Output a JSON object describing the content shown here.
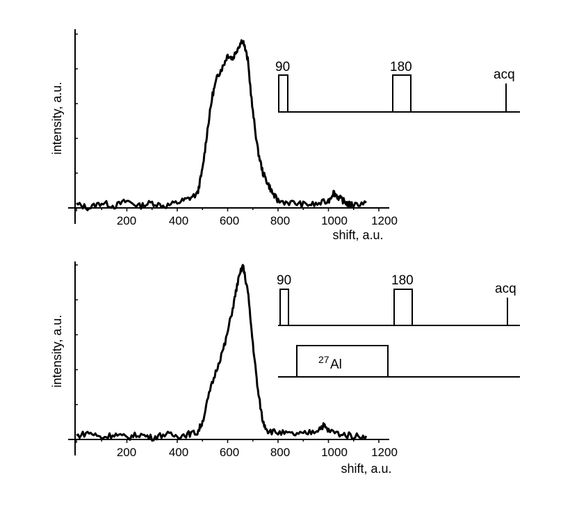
{
  "chart_data": [
    {
      "type": "line",
      "panel": "top",
      "xlabel": "shift, a.u.",
      "ylabel": "intensity, a.u.",
      "x_ticks": [
        "200",
        "400",
        "600",
        "800",
        "1000",
        "1200"
      ],
      "xlim": [
        0,
        1300
      ],
      "ylim": [
        0,
        1
      ],
      "grid": false,
      "series": [
        {
          "x": [
            0,
            50,
            100,
            150,
            200,
            250,
            300,
            350,
            400,
            440,
            480,
            500,
            520,
            540,
            560,
            580,
            600,
            620,
            640,
            660,
            680,
            700,
            720,
            740,
            760,
            780,
            800,
            850,
            900,
            950,
            1000,
            1020,
            1040,
            1060,
            1080,
            1100,
            1150
          ],
          "y": [
            0.02,
            0.0,
            0.03,
            0.01,
            0.04,
            0.01,
            0.03,
            0.01,
            0.03,
            0.05,
            0.08,
            0.22,
            0.45,
            0.65,
            0.76,
            0.81,
            0.88,
            0.86,
            0.92,
            0.97,
            0.85,
            0.55,
            0.33,
            0.2,
            0.14,
            0.08,
            0.04,
            0.03,
            0.02,
            0.02,
            0.04,
            0.09,
            0.06,
            0.04,
            0.02,
            0.02,
            0.03
          ]
        }
      ],
      "pulse_sequence": {
        "labels": [
          "90",
          "180",
          "acq"
        ]
      }
    },
    {
      "type": "line",
      "panel": "bottom",
      "xlabel": "shift, a.u.",
      "ylabel": "intensity, a.u.",
      "x_ticks": [
        "200",
        "400",
        "600",
        "800",
        "1000",
        "1200"
      ],
      "xlim": [
        0,
        1300
      ],
      "ylim": [
        0,
        1
      ],
      "grid": false,
      "series": [
        {
          "x": [
            0,
            50,
            100,
            150,
            200,
            250,
            300,
            350,
            400,
            440,
            480,
            500,
            530,
            560,
            590,
            620,
            640,
            660,
            680,
            700,
            720,
            740,
            760,
            800,
            850,
            900,
            950,
            980,
            1000,
            1050,
            1100,
            1150
          ],
          "y": [
            0.02,
            0.04,
            0.01,
            0.03,
            0.01,
            0.03,
            0.01,
            0.03,
            0.02,
            0.03,
            0.04,
            0.1,
            0.28,
            0.42,
            0.55,
            0.75,
            0.9,
            1.0,
            0.85,
            0.55,
            0.28,
            0.1,
            0.05,
            0.04,
            0.03,
            0.03,
            0.05,
            0.08,
            0.05,
            0.03,
            0.02,
            0.02
          ]
        }
      ],
      "pulse_sequence": {
        "labels": [
          "90",
          "180",
          "acq"
        ],
        "decoupling_label_mass": "27",
        "decoupling_label_element": "Al"
      }
    }
  ]
}
